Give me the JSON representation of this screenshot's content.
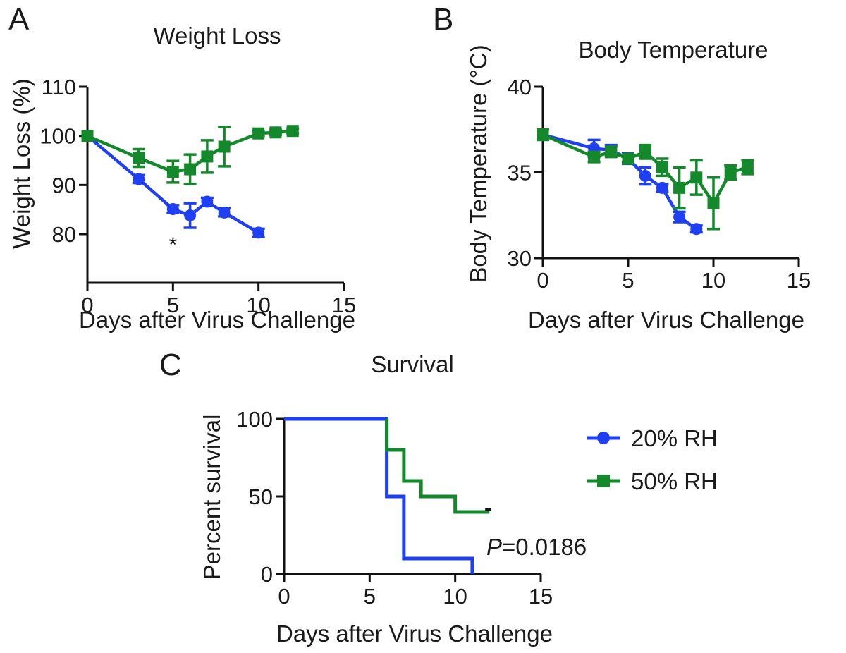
{
  "colors": {
    "series_20rh": "#1f3ff2",
    "series_50rh": "#13892b",
    "axis": "#111111"
  },
  "legend": {
    "items": [
      {
        "label": "20% RH",
        "marker": "circle",
        "color": "#1f3ff2"
      },
      {
        "label": "50% RH",
        "marker": "square",
        "color": "#13892b"
      }
    ]
  },
  "chart_data": [
    {
      "panel": "A",
      "type": "line",
      "title": "Weight Loss",
      "xlabel": "Days after Virus Challenge",
      "ylabel": "Weight Loss (%)",
      "xlim": [
        0,
        15
      ],
      "ylim": [
        75,
        110
      ],
      "xticks": [
        0,
        5,
        10,
        15
      ],
      "yticks": [
        80,
        90,
        100,
        110
      ],
      "annotations": [
        {
          "text": "*",
          "x": 5,
          "y": 79
        }
      ],
      "series": [
        {
          "marker": "circle",
          "color": "#1f3ff2",
          "x": [
            0,
            3,
            5,
            6,
            7,
            8,
            10
          ],
          "y": [
            100,
            91.2,
            85.1,
            83.8,
            86.6,
            84.4,
            80.3
          ],
          "err": [
            0,
            0.8,
            0.8,
            2.5,
            0.8,
            0.8,
            0.8
          ]
        },
        {
          "marker": "square",
          "color": "#13892b",
          "x": [
            0,
            3,
            5,
            6,
            7,
            8,
            10,
            11,
            12
          ],
          "y": [
            100,
            95.5,
            92.7,
            93.2,
            95.8,
            97.8,
            100.5,
            100.7,
            101
          ],
          "err": [
            0,
            1.8,
            2.2,
            3.0,
            3.3,
            4.0,
            0.5,
            0.5,
            0.5
          ]
        }
      ]
    },
    {
      "panel": "B",
      "type": "line",
      "title": "Body Temperature",
      "xlabel": "Days after Virus Challenge",
      "ylabel": "Body Temperature (°C)",
      "xlim": [
        0,
        15
      ],
      "ylim": [
        30,
        40
      ],
      "xticks": [
        0,
        5,
        10,
        15
      ],
      "yticks": [
        30,
        35,
        40
      ],
      "series": [
        {
          "marker": "circle",
          "color": "#1f3ff2",
          "x": [
            0,
            3,
            4,
            5,
            6,
            7,
            8,
            9
          ],
          "y": [
            37.2,
            36.4,
            36.3,
            35.8,
            34.8,
            34.1,
            32.4,
            31.7
          ],
          "err": [
            0.3,
            0.5,
            0.3,
            0.3,
            0.5,
            0.2,
            0.3,
            0.2
          ]
        },
        {
          "marker": "square",
          "color": "#13892b",
          "x": [
            0,
            3,
            4,
            5,
            6,
            7,
            8,
            9,
            10,
            11,
            12
          ],
          "y": [
            37.2,
            35.9,
            36.2,
            35.8,
            36.2,
            35.3,
            34.1,
            34.7,
            33.2,
            35.0,
            35.3
          ],
          "err": [
            0.3,
            0.3,
            0.3,
            0.2,
            0.4,
            0.5,
            1.2,
            1.0,
            1.5,
            0.4,
            0.4
          ]
        }
      ]
    },
    {
      "panel": "C",
      "type": "line",
      "title": "Survival",
      "xlabel": "Days after Virus Challenge",
      "ylabel": "Percent survival",
      "xlim": [
        0,
        15
      ],
      "ylim": [
        0,
        100
      ],
      "xticks": [
        0,
        5,
        10,
        15
      ],
      "yticks": [
        0,
        50,
        100
      ],
      "annotations": [
        {
          "text_italic": "P",
          "text": "=0.0186"
        }
      ],
      "series": [
        {
          "name": "20% RH",
          "step": true,
          "color": "#1f3ff2",
          "x": [
            0,
            6,
            7,
            11
          ],
          "y": [
            100,
            50,
            10,
            0
          ]
        },
        {
          "name": "50% RH",
          "step": true,
          "color": "#13892b",
          "x": [
            6,
            7,
            8,
            10,
            12
          ],
          "y": [
            100,
            80,
            60,
            50,
            40
          ]
        }
      ]
    }
  ]
}
